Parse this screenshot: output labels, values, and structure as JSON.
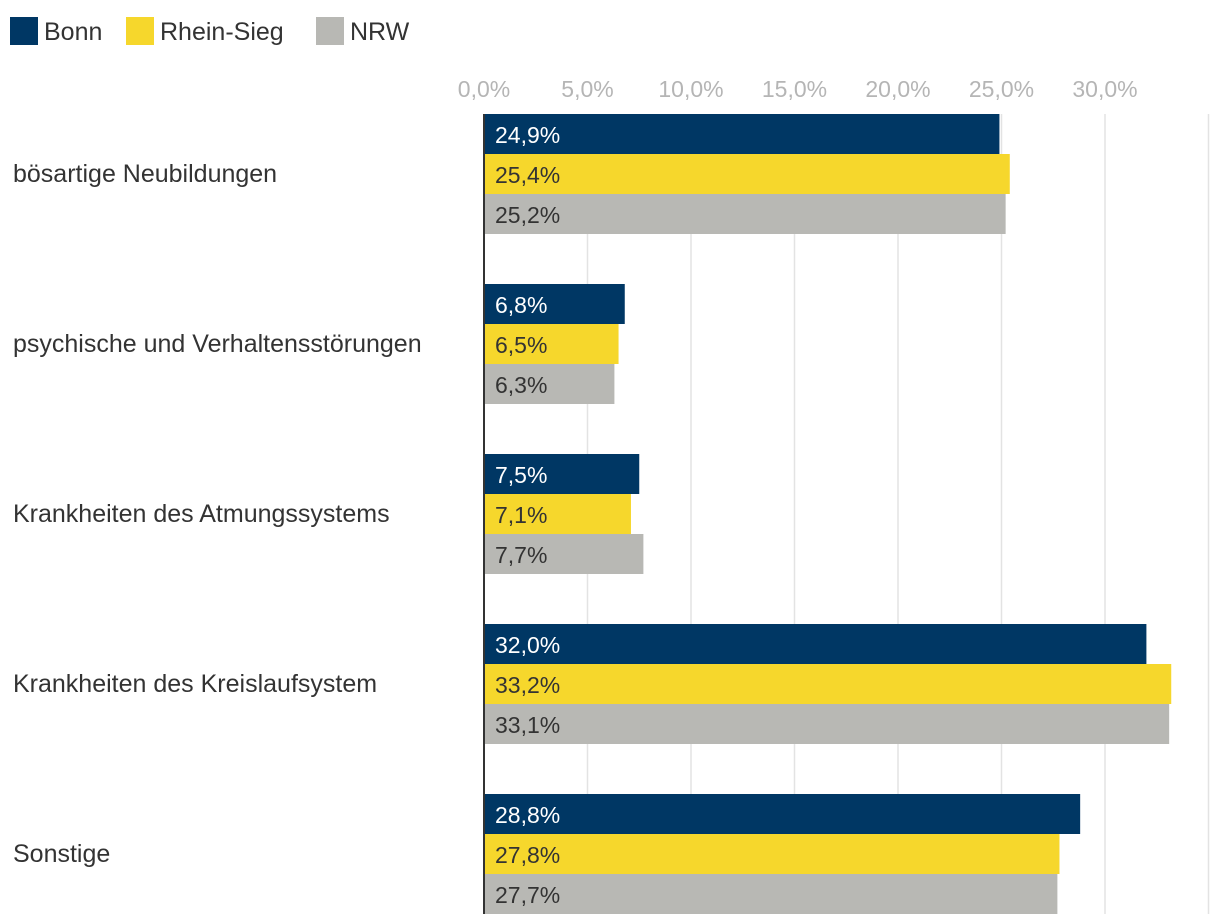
{
  "chart_data": {
    "type": "bar",
    "orientation": "horizontal",
    "categories": [
      "bösartige Neubildungen",
      "psychische und Verhaltensstörungen",
      "Krankheiten des Atmungssystems",
      "Krankheiten des Kreislaufsystem",
      "Sonstige"
    ],
    "series": [
      {
        "name": "Bonn",
        "color": "#003764",
        "label_color": "#ffffff",
        "values": [
          24.9,
          6.8,
          7.5,
          32.0,
          28.8
        ],
        "labels": [
          "24,9%",
          "6,8%",
          "7,5%",
          "32,0%",
          "28,8%"
        ]
      },
      {
        "name": "Rhein-Sieg",
        "color": "#f6d72c",
        "label_color": "#333333",
        "values": [
          25.4,
          6.5,
          7.1,
          33.2,
          27.8
        ],
        "labels": [
          "25,4%",
          "6,5%",
          "7,1%",
          "33,2%",
          "27,8%"
        ]
      },
      {
        "name": "NRW",
        "color": "#b8b8b4",
        "label_color": "#333333",
        "values": [
          25.2,
          6.3,
          7.7,
          33.1,
          27.7
        ],
        "labels": [
          "25,2%",
          "6,3%",
          "7,7%",
          "33,1%",
          "27,7%"
        ]
      }
    ],
    "xticks": [
      0,
      5,
      10,
      15,
      20,
      25,
      30
    ],
    "xtick_labels": [
      "0,0%",
      "5,0%",
      "10,0%",
      "15,0%",
      "20,0%",
      "25,0%",
      "30,0%"
    ],
    "xlim": [
      0,
      35
    ],
    "grid": true,
    "legend_position": "top-left",
    "title": "",
    "xlabel": "",
    "ylabel": "",
    "gridline_color": "#e3e3e3",
    "axis_color": "#333333"
  }
}
